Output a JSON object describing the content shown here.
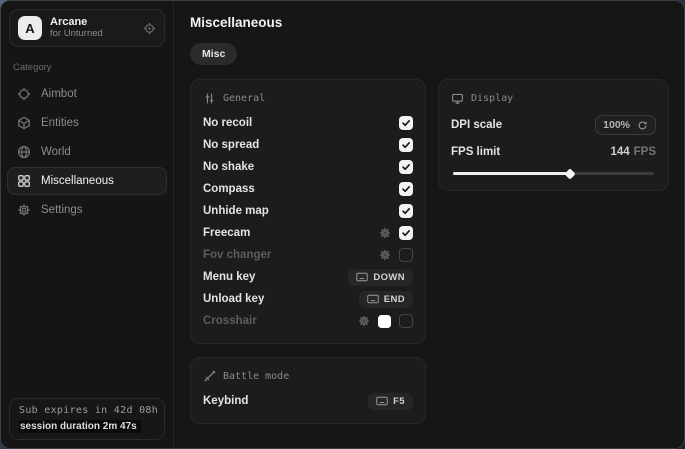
{
  "colors": {
    "accent": "#f2f2f2",
    "window_bg": "#161616",
    "card_bg": "#1c1c1c",
    "border": "#272727"
  },
  "sidebar": {
    "logo_letter": "A",
    "app_name": "Arcane",
    "app_subtitle": "for Unturned",
    "category_label": "Category",
    "items": [
      {
        "label": "Aimbot",
        "icon": "crosshair-icon",
        "active": false
      },
      {
        "label": "Entities",
        "icon": "cube-icon",
        "active": false
      },
      {
        "label": "World",
        "icon": "globe-icon",
        "active": false
      },
      {
        "label": "Miscellaneous",
        "icon": "grid-icon",
        "active": true
      },
      {
        "label": "Settings",
        "icon": "gear-icon",
        "active": false
      }
    ],
    "status": {
      "line1": "Sub expires in 42d 08h",
      "line2": "session duration 2m 47s"
    }
  },
  "main": {
    "title": "Miscellaneous",
    "tab_label": "Misc",
    "general": {
      "title": "General",
      "icon": "sliders-icon",
      "rows": [
        {
          "label": "No recoil",
          "controls": [
            {
              "type": "checkbox",
              "checked": true
            }
          ]
        },
        {
          "label": "No spread",
          "controls": [
            {
              "type": "checkbox",
              "checked": true
            }
          ]
        },
        {
          "label": "No shake",
          "controls": [
            {
              "type": "checkbox",
              "checked": true
            }
          ]
        },
        {
          "label": "Compass",
          "controls": [
            {
              "type": "checkbox",
              "checked": true
            }
          ]
        },
        {
          "label": "Unhide map",
          "controls": [
            {
              "type": "checkbox",
              "checked": true
            }
          ]
        },
        {
          "label": "Freecam",
          "controls": [
            {
              "type": "gear"
            },
            {
              "type": "checkbox",
              "checked": true
            }
          ]
        },
        {
          "label": "Fov changer",
          "dim": true,
          "controls": [
            {
              "type": "gear"
            },
            {
              "type": "checkbox",
              "checked": false
            }
          ]
        },
        {
          "label": "Menu key",
          "controls": [
            {
              "type": "keybind",
              "value": "DOWN"
            }
          ]
        },
        {
          "label": "Unload key",
          "controls": [
            {
              "type": "keybind",
              "value": "END"
            }
          ]
        },
        {
          "label": "Crosshair",
          "dim": true,
          "controls": [
            {
              "type": "gear"
            },
            {
              "type": "swatch",
              "color": "#ffffff"
            },
            {
              "type": "checkbox",
              "checked": false
            }
          ]
        }
      ]
    },
    "battle": {
      "title": "Battle mode",
      "icon": "sword-icon",
      "rows": [
        {
          "label": "Keybind",
          "controls": [
            {
              "type": "keybind",
              "value": "F5"
            }
          ]
        }
      ]
    },
    "display": {
      "title": "Display",
      "icon": "monitor-icon",
      "dpi_label": "DPI scale",
      "dpi_value": "100%",
      "fps_label": "FPS limit",
      "fps_value": "144",
      "fps_unit": "FPS",
      "slider_percent": 58
    }
  }
}
